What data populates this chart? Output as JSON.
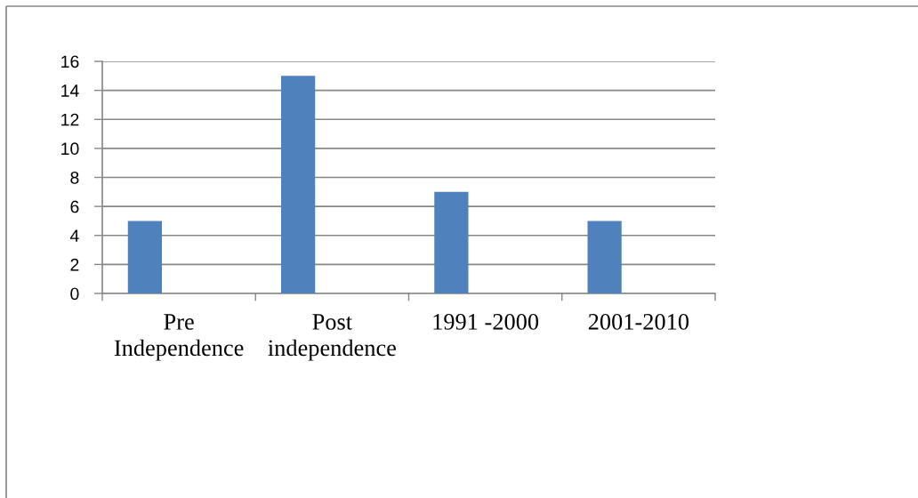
{
  "chart_data": {
    "type": "bar",
    "categories": [
      "Pre Independence",
      "Post independence",
      "1991 -2000",
      "2001-2010"
    ],
    "values": [
      5,
      15,
      7,
      5
    ],
    "color": "#4f81bd",
    "ylim": [
      0,
      16
    ],
    "yticks": [
      0,
      2,
      4,
      6,
      8,
      10,
      12,
      14,
      16
    ],
    "grid": "y"
  }
}
